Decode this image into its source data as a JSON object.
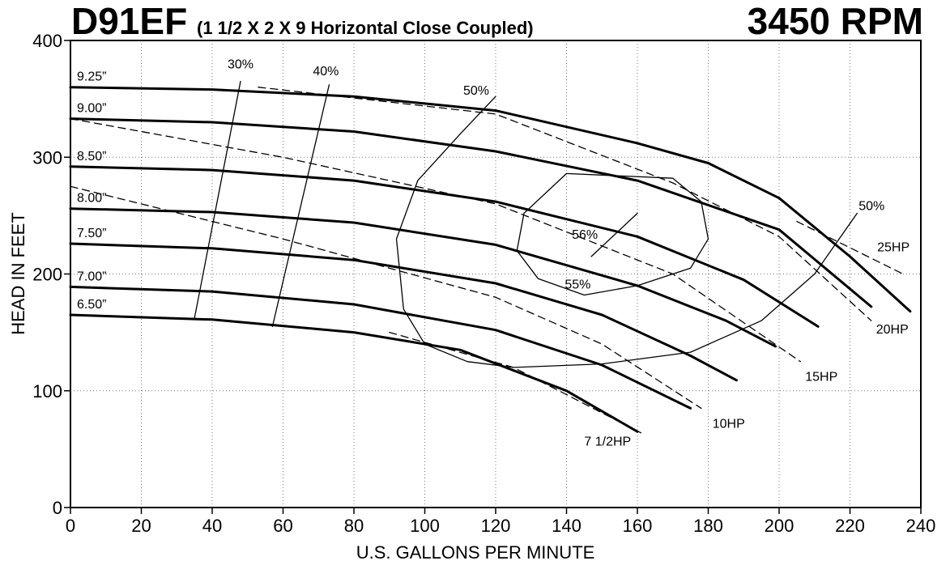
{
  "chart_data": {
    "type": "line",
    "title": "D91EF",
    "subtitle": "(1 1/2 X 2 X 9 Horizontal Close Coupled)",
    "annotations": [
      "3450 RPM"
    ],
    "x_label": "U.S. GALLONS PER MINUTE",
    "y_label": "HEAD IN FEET",
    "color": "#000000",
    "grid": true,
    "xlim": [
      0,
      240
    ],
    "ylim": [
      0,
      400
    ],
    "xticks": [
      0,
      20,
      40,
      60,
      80,
      100,
      120,
      140,
      160,
      180,
      200,
      220,
      240
    ],
    "yticks": [
      0,
      100,
      200,
      300,
      400
    ],
    "series": [
      {
        "name": "9.25”",
        "kind": "impeller",
        "x": [
          0,
          40,
          80,
          120,
          160,
          180,
          200,
          220,
          237
        ],
        "values": [
          360,
          358,
          352,
          340,
          312,
          295,
          265,
          215,
          168
        ]
      },
      {
        "name": "9.00”",
        "kind": "impeller",
        "x": [
          0,
          40,
          80,
          120,
          160,
          200,
          226
        ],
        "values": [
          333,
          330,
          322,
          305,
          280,
          238,
          172
        ]
      },
      {
        "name": "8.50”",
        "kind": "impeller",
        "x": [
          0,
          40,
          80,
          120,
          160,
          190,
          211
        ],
        "values": [
          292,
          289,
          280,
          262,
          232,
          195,
          155
        ]
      },
      {
        "name": "8.00”",
        "kind": "impeller",
        "x": [
          0,
          40,
          80,
          120,
          160,
          185,
          199
        ],
        "values": [
          256,
          253,
          244,
          225,
          190,
          160,
          138
        ]
      },
      {
        "name": "7.50”",
        "kind": "impeller",
        "x": [
          0,
          40,
          80,
          120,
          150,
          175,
          188
        ],
        "values": [
          226,
          222,
          212,
          192,
          165,
          130,
          109
        ]
      },
      {
        "name": "7.00”",
        "kind": "impeller",
        "x": [
          0,
          40,
          80,
          120,
          150,
          175
        ],
        "values": [
          189,
          185,
          174,
          152,
          122,
          85
        ]
      },
      {
        "name": "6.50”",
        "kind": "impeller",
        "x": [
          0,
          40,
          80,
          110,
          140,
          160
        ],
        "values": [
          165,
          161,
          150,
          135,
          100,
          65
        ]
      },
      {
        "name": "25HP",
        "kind": "hp",
        "x": [
          205,
          235
        ],
        "values": [
          245,
          200
        ]
      },
      {
        "name": "20HP",
        "kind": "hp",
        "x": [
          53,
          120,
          170,
          200,
          226
        ],
        "values": [
          360,
          337,
          278,
          232,
          160
        ]
      },
      {
        "name": "15HP",
        "kind": "hp",
        "x": [
          0,
          60,
          120,
          170,
          206
        ],
        "values": [
          333,
          300,
          260,
          200,
          125
        ]
      },
      {
        "name": "10HP",
        "kind": "hp",
        "x": [
          0,
          60,
          120,
          150,
          178
        ],
        "values": [
          275,
          230,
          180,
          140,
          85
        ]
      },
      {
        "name": "7 1/2HP",
        "kind": "hp",
        "x": [
          90,
          125,
          161
        ],
        "values": [
          150,
          120,
          64
        ]
      },
      {
        "name": "30%",
        "kind": "efficiency",
        "x": [
          35,
          48
        ],
        "values": [
          162,
          365
        ]
      },
      {
        "name": "40%",
        "kind": "efficiency",
        "x": [
          57,
          73
        ],
        "values": [
          155,
          362
        ]
      },
      {
        "name": "50%",
        "kind": "efficiency",
        "x": [
          120,
          110,
          98,
          92,
          94,
          100,
          112,
          125,
          150,
          175,
          195,
          210,
          222
        ],
        "values": [
          352,
          320,
          280,
          230,
          170,
          140,
          125,
          120,
          123,
          133,
          160,
          200,
          252
        ]
      },
      {
        "name": "55%",
        "kind": "efficiency",
        "x": [
          140,
          170,
          178,
          180,
          175,
          160,
          145,
          132,
          126,
          128,
          140
        ],
        "values": [
          286,
          282,
          262,
          230,
          205,
          190,
          182,
          196,
          220,
          252,
          286
        ]
      },
      {
        "name": "56%",
        "kind": "efficiency",
        "x": [
          147,
          160
        ],
        "values": [
          215,
          252
        ]
      }
    ]
  }
}
